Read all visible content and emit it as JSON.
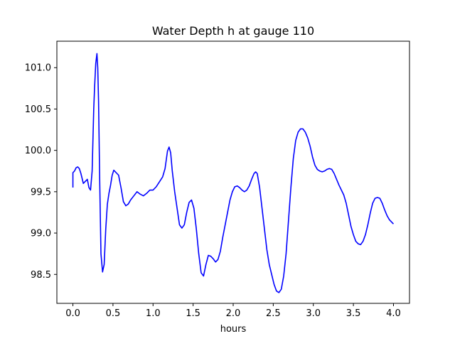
{
  "chart_data": {
    "type": "line",
    "title": "Water Depth h at gauge 110",
    "xlabel": "hours",
    "ylabel": "",
    "xlim": [
      -0.2,
      4.2
    ],
    "ylim": [
      98.15,
      101.32
    ],
    "xticks": [
      0.0,
      0.5,
      1.0,
      1.5,
      2.0,
      2.5,
      3.0,
      3.5,
      4.0
    ],
    "xtick_labels": [
      "0.0",
      "0.5",
      "1.0",
      "1.5",
      "2.0",
      "2.5",
      "3.0",
      "3.5",
      "4.0"
    ],
    "yticks": [
      98.5,
      99.0,
      99.5,
      100.0,
      100.5,
      101.0
    ],
    "ytick_labels": [
      "98.5",
      "99.0",
      "99.5",
      "100.0",
      "100.5",
      "101.0"
    ],
    "grid": false,
    "series": [
      {
        "name": "",
        "color": "#0000ff",
        "x": [
          0.0,
          0.0,
          0.02,
          0.04,
          0.06,
          0.08,
          0.1,
          0.13,
          0.16,
          0.18,
          0.2,
          0.22,
          0.24,
          0.26,
          0.27,
          0.285,
          0.3,
          0.31,
          0.32,
          0.335,
          0.35,
          0.37,
          0.39,
          0.41,
          0.43,
          0.45,
          0.47,
          0.49,
          0.51,
          0.53,
          0.55,
          0.57,
          0.6,
          0.63,
          0.66,
          0.69,
          0.72,
          0.76,
          0.8,
          0.84,
          0.88,
          0.92,
          0.96,
          1.0,
          1.04,
          1.08,
          1.12,
          1.15,
          1.18,
          1.2,
          1.22,
          1.24,
          1.27,
          1.3,
          1.33,
          1.36,
          1.39,
          1.42,
          1.45,
          1.48,
          1.51,
          1.54,
          1.57,
          1.6,
          1.63,
          1.66,
          1.69,
          1.72,
          1.75,
          1.78,
          1.81,
          1.84,
          1.87,
          1.9,
          1.93,
          1.96,
          1.99,
          2.02,
          2.05,
          2.08,
          2.11,
          2.14,
          2.17,
          2.2,
          2.23,
          2.26,
          2.28,
          2.3,
          2.33,
          2.36,
          2.39,
          2.42,
          2.45,
          2.48,
          2.51,
          2.54,
          2.57,
          2.6,
          2.63,
          2.66,
          2.69,
          2.72,
          2.75,
          2.78,
          2.81,
          2.84,
          2.87,
          2.9,
          2.93,
          2.96,
          2.99,
          3.02,
          3.05,
          3.08,
          3.11,
          3.14,
          3.17,
          3.2,
          3.23,
          3.26,
          3.29,
          3.32,
          3.35,
          3.38,
          3.41,
          3.44,
          3.47,
          3.5,
          3.53,
          3.56,
          3.59,
          3.62,
          3.65,
          3.68,
          3.71,
          3.74,
          3.77,
          3.8,
          3.83,
          3.86,
          3.89,
          3.92,
          3.95,
          3.98,
          4.0
        ],
        "y": [
          99.55,
          99.73,
          99.75,
          99.79,
          99.8,
          99.78,
          99.72,
          99.6,
          99.63,
          99.65,
          99.55,
          99.52,
          99.75,
          100.5,
          100.75,
          101.05,
          101.17,
          101.0,
          100.6,
          99.6,
          98.75,
          98.53,
          98.62,
          99.05,
          99.35,
          99.48,
          99.58,
          99.7,
          99.76,
          99.74,
          99.72,
          99.7,
          99.55,
          99.38,
          99.33,
          99.35,
          99.4,
          99.45,
          99.5,
          99.47,
          99.45,
          99.48,
          99.52,
          99.52,
          99.56,
          99.62,
          99.68,
          99.78,
          99.99,
          100.04,
          99.97,
          99.75,
          99.5,
          99.3,
          99.1,
          99.06,
          99.1,
          99.25,
          99.37,
          99.4,
          99.3,
          99.05,
          98.75,
          98.52,
          98.48,
          98.62,
          98.73,
          98.72,
          98.69,
          98.65,
          98.68,
          98.78,
          98.95,
          99.1,
          99.25,
          99.4,
          99.5,
          99.56,
          99.57,
          99.55,
          99.52,
          99.5,
          99.52,
          99.57,
          99.65,
          99.72,
          99.74,
          99.72,
          99.55,
          99.3,
          99.05,
          98.8,
          98.62,
          98.5,
          98.38,
          98.3,
          98.28,
          98.32,
          98.48,
          98.75,
          99.15,
          99.55,
          99.9,
          100.12,
          100.22,
          100.26,
          100.26,
          100.22,
          100.15,
          100.05,
          99.92,
          99.82,
          99.77,
          99.75,
          99.74,
          99.75,
          99.77,
          99.78,
          99.77,
          99.72,
          99.65,
          99.58,
          99.52,
          99.46,
          99.36,
          99.22,
          99.08,
          98.98,
          98.9,
          98.87,
          98.86,
          98.9,
          98.98,
          99.1,
          99.24,
          99.36,
          99.42,
          99.43,
          99.42,
          99.36,
          99.28,
          99.21,
          99.16,
          99.13,
          99.11
        ]
      }
    ]
  }
}
